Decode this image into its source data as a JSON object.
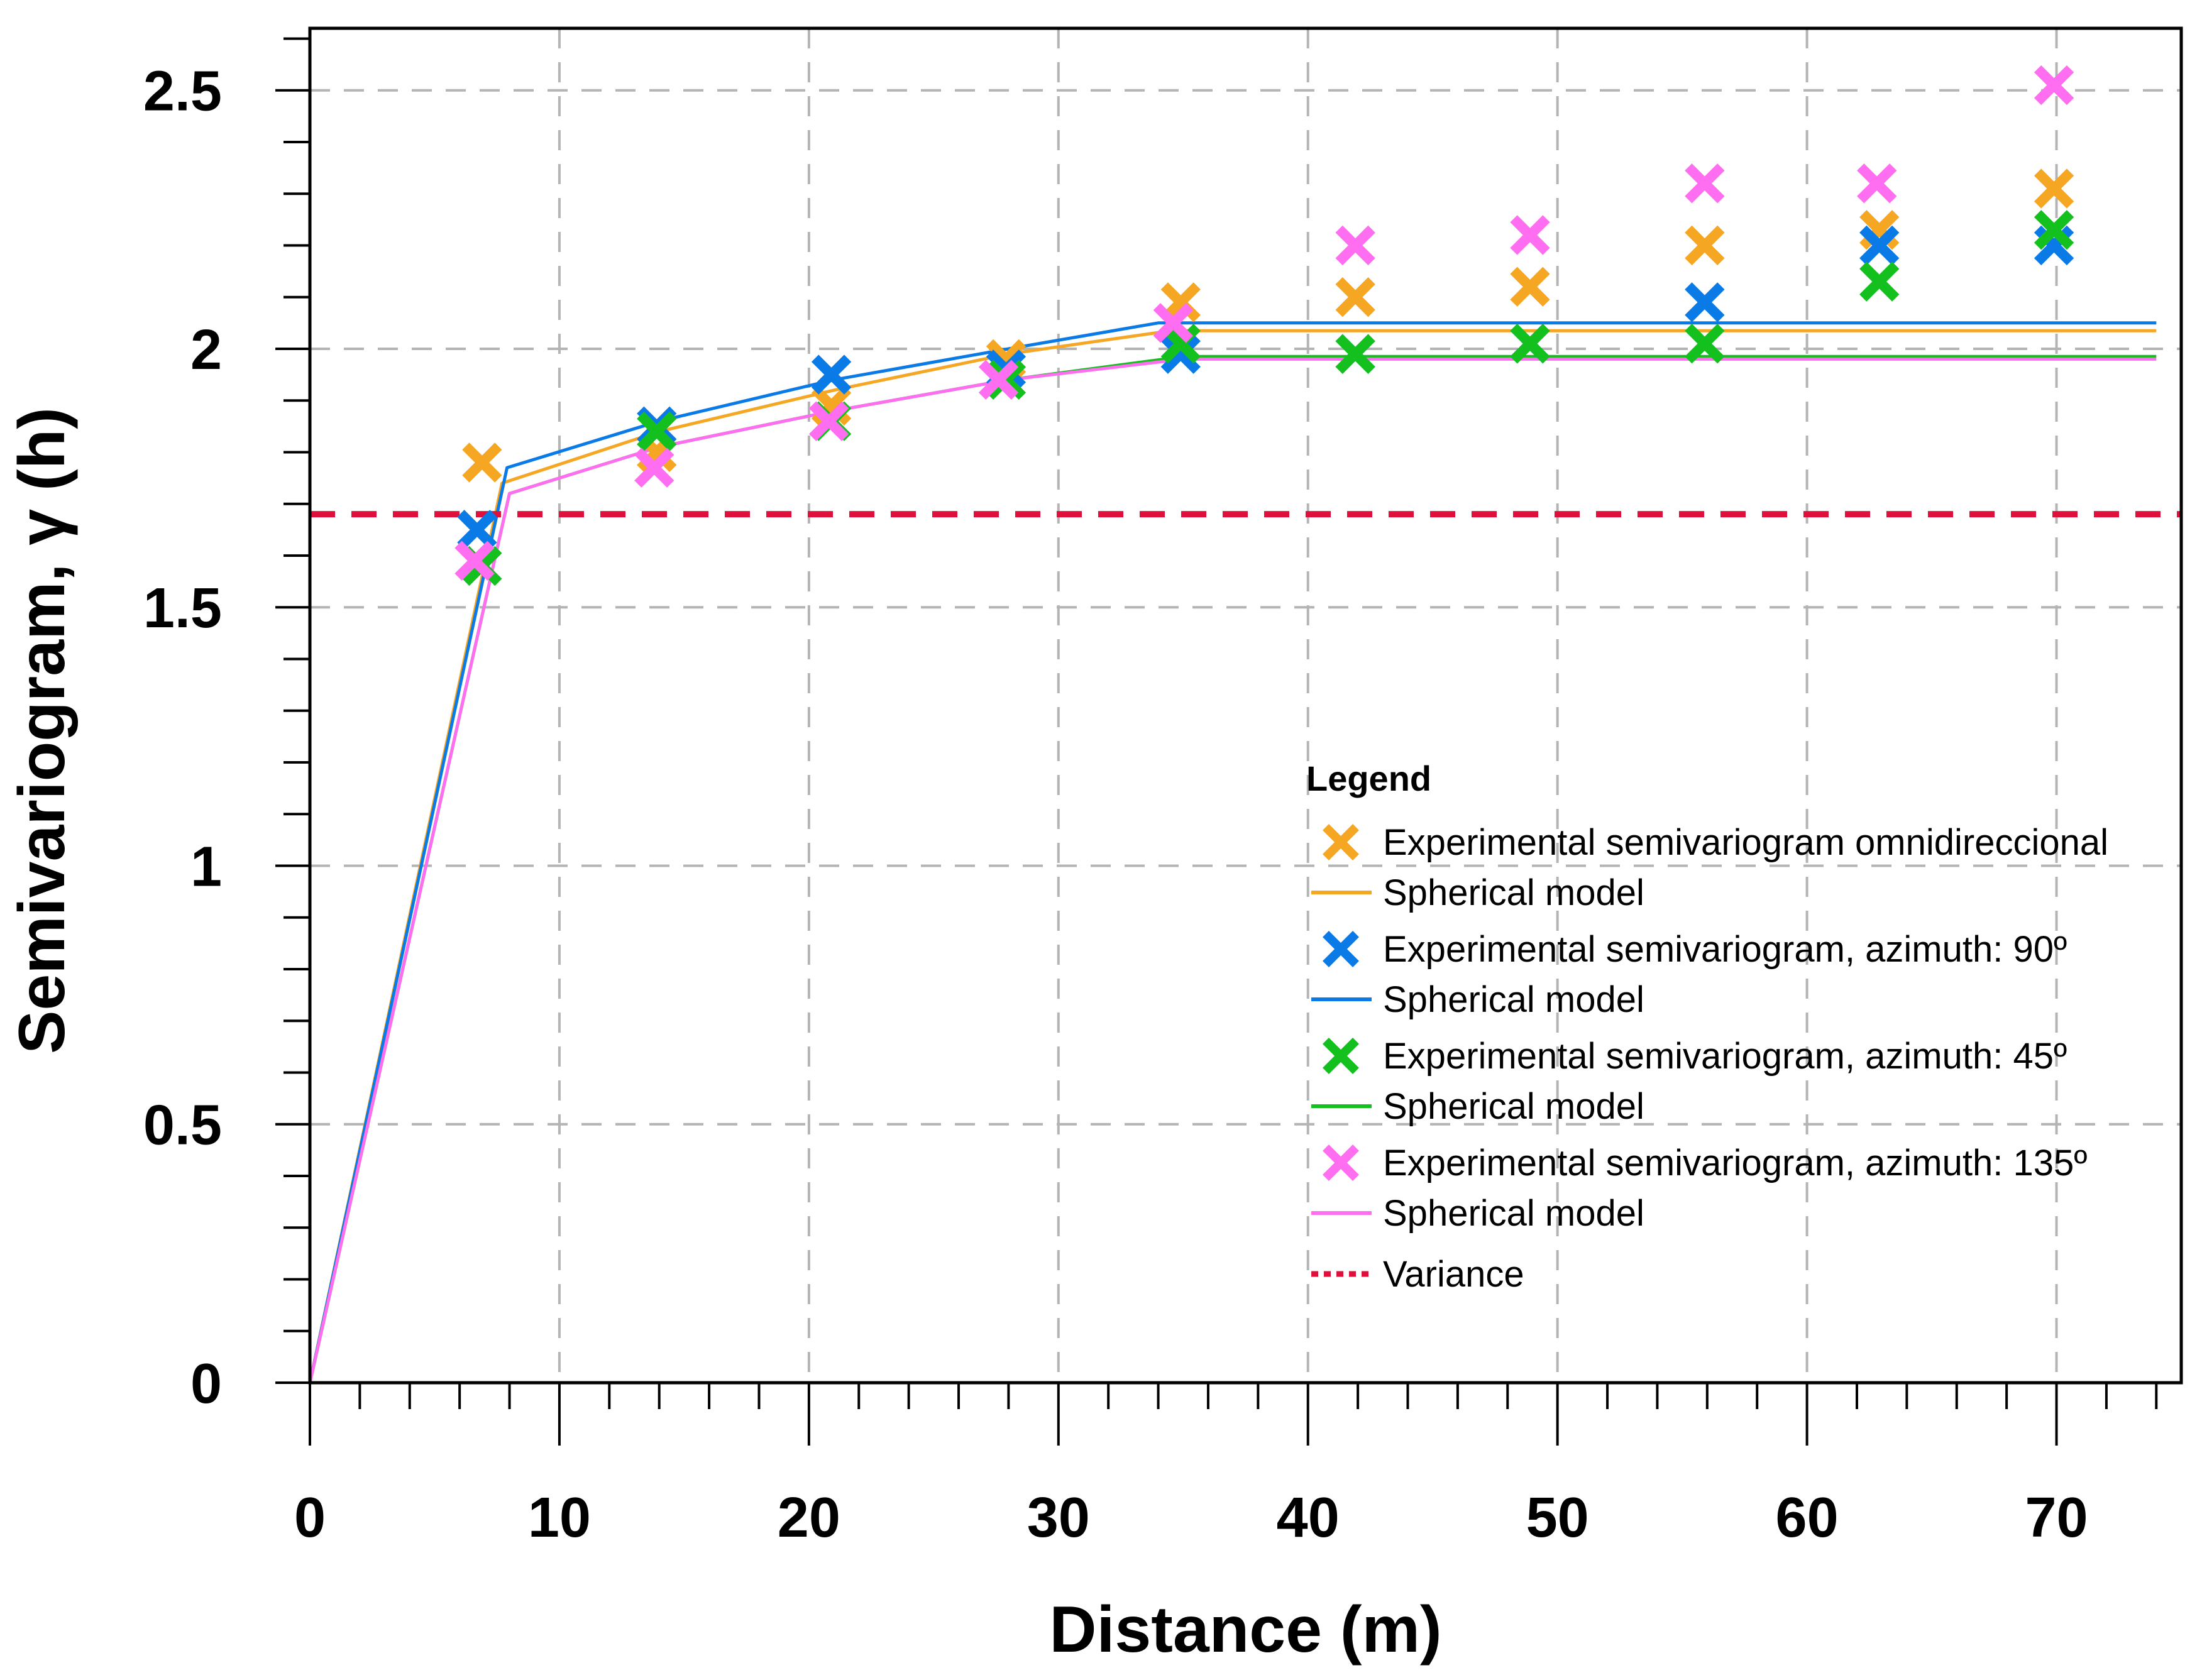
{
  "chart_data": {
    "type": "scatter",
    "title": "",
    "xlabel": "Distance (m)",
    "ylabel": "Semivariogram, γ (h)",
    "xlim": [
      0,
      75
    ],
    "ylim": [
      0,
      2.62
    ],
    "xticks": [
      0,
      10,
      20,
      30,
      40,
      50,
      60,
      70
    ],
    "xtick_labels": [
      "0",
      "10",
      "20",
      "30",
      "40",
      "50",
      "60",
      "70"
    ],
    "yticks": [
      0,
      0.5,
      1,
      1.5,
      2,
      2.5
    ],
    "ytick_labels": [
      "0",
      "0.5",
      "1",
      "1.5",
      "2",
      "2.5"
    ],
    "grid": true,
    "legend_title": "Legend",
    "legend_position": "right",
    "series": [
      {
        "name": "Experimental semivariogram omnidireccional",
        "kind": "points",
        "color": "#F5A623",
        "x": [
          6.9,
          13.9,
          20.9,
          27.9,
          34.9,
          41.9,
          48.9,
          55.9,
          62.9,
          69.9
        ],
        "y": [
          1.78,
          1.8,
          1.89,
          1.98,
          2.09,
          2.1,
          2.12,
          2.2,
          2.23,
          2.31
        ]
      },
      {
        "name": "Spherical model",
        "kind": "line",
        "color": "#F5A623",
        "x": [
          0,
          7.7,
          14,
          21,
          28,
          34.5,
          74
        ],
        "y": [
          0,
          1.74,
          1.84,
          1.92,
          1.99,
          2.035,
          2.035
        ]
      },
      {
        "name": "Experimental semivariogram, azimuth: 90º",
        "kind": "points",
        "color": "#0A7BE6",
        "x": [
          6.7,
          13.9,
          20.9,
          27.9,
          34.9,
          41.9,
          48.9,
          55.9,
          62.9,
          69.9
        ],
        "y": [
          1.65,
          1.85,
          1.95,
          1.96,
          1.99,
          1.99,
          2.01,
          2.09,
          2.2,
          2.2
        ]
      },
      {
        "name": "Spherical model",
        "kind": "line",
        "color": "#0A7BE6",
        "x": [
          0,
          7.9,
          14,
          21,
          28,
          34,
          74
        ],
        "y": [
          0,
          1.77,
          1.86,
          1.94,
          2.0,
          2.05,
          2.05
        ]
      },
      {
        "name": "Experimental semivariogram, azimuth: 45º",
        "kind": "points",
        "color": "#14C01E",
        "x": [
          6.9,
          13.9,
          20.9,
          27.9,
          34.9,
          41.9,
          48.9,
          55.9,
          62.9,
          69.9
        ],
        "y": [
          1.58,
          1.84,
          1.86,
          1.94,
          2.01,
          1.99,
          2.01,
          2.01,
          2.13,
          2.23
        ]
      },
      {
        "name": "Spherical model",
        "kind": "line",
        "color": "#14C01E",
        "x": [
          0,
          8.0,
          14,
          21,
          28,
          35,
          74
        ],
        "y": [
          0,
          1.72,
          1.81,
          1.88,
          1.94,
          1.985,
          1.985
        ]
      },
      {
        "name": "Experimental semivariogram, azimuth: 135º",
        "kind": "points",
        "color": "#FF6EF0",
        "x": [
          6.6,
          13.8,
          20.8,
          27.6,
          34.6,
          41.9,
          48.9,
          55.9,
          62.8,
          69.9
        ],
        "y": [
          1.59,
          1.77,
          1.86,
          1.94,
          2.05,
          2.2,
          2.22,
          2.32,
          2.32,
          2.51
        ]
      },
      {
        "name": "Spherical model",
        "kind": "line",
        "color": "#FF6EF0",
        "x": [
          0,
          8.0,
          14,
          21,
          28,
          35,
          74
        ],
        "y": [
          0,
          1.72,
          1.81,
          1.88,
          1.94,
          1.98,
          1.98
        ]
      },
      {
        "name": "Variance",
        "kind": "hline",
        "color": "#E0103C",
        "y": [
          1.68
        ]
      }
    ]
  }
}
